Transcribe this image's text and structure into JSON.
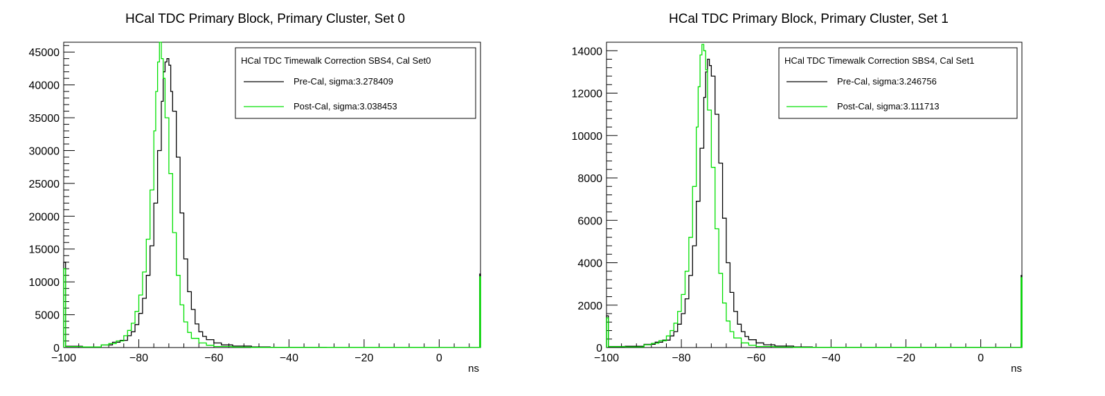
{
  "chart_data": [
    {
      "type": "line",
      "title": "HCal TDC Primary Block, Primary Cluster, Set 0",
      "xlabel": "ns",
      "ylabel": "",
      "xlim": [
        -100,
        11
      ],
      "ylim": [
        0,
        46500
      ],
      "x_ticks": [
        "−100",
        "−80",
        "−60",
        "−40",
        "−20",
        "0"
      ],
      "x_tick_values": [
        -100,
        -80,
        -60,
        -40,
        -20,
        0
      ],
      "y_ticks": [
        "0",
        "5000",
        "10000",
        "15000",
        "20000",
        "25000",
        "30000",
        "35000",
        "40000",
        "45000"
      ],
      "y_tick_values": [
        0,
        5000,
        10000,
        15000,
        20000,
        25000,
        30000,
        35000,
        40000,
        45000
      ],
      "grid": false,
      "legend": {
        "placement": "top-right",
        "title": "HCal TDC Timewalk Correction SBS4, Cal Set0",
        "entries": [
          "Pre-Cal, sigma:3.278409",
          "Post-Cal, sigma:3.038453"
        ]
      },
      "series": [
        {
          "name": "Pre-Cal, sigma:3.278409",
          "color": "#000000",
          "points": [
            [
              -100,
              13000
            ],
            [
              -99.5,
              200
            ],
            [
              -95,
              100
            ],
            [
              -90,
              400
            ],
            [
              -87,
              800
            ],
            [
              -85,
              1100
            ],
            [
              -83,
              1800
            ],
            [
              -82,
              2400
            ],
            [
              -81,
              3500
            ],
            [
              -80,
              5200
            ],
            [
              -79,
              7500
            ],
            [
              -78,
              11000
            ],
            [
              -77,
              15500
            ],
            [
              -76,
              22000
            ],
            [
              -75,
              30000
            ],
            [
              -74,
              37500
            ],
            [
              -73.5,
              42000
            ],
            [
              -73,
              43500
            ],
            [
              -72.5,
              44000
            ],
            [
              -72,
              43000
            ],
            [
              -71.5,
              39000
            ],
            [
              -71,
              36000
            ],
            [
              -70,
              29000
            ],
            [
              -69,
              20500
            ],
            [
              -68,
              13500
            ],
            [
              -67,
              8500
            ],
            [
              -66,
              5800
            ],
            [
              -65,
              3600
            ],
            [
              -64,
              2400
            ],
            [
              -63,
              1700
            ],
            [
              -62,
              1200
            ],
            [
              -60,
              700
            ],
            [
              -58,
              400
            ],
            [
              -55,
              220
            ],
            [
              -50,
              100
            ],
            [
              -45,
              40
            ],
            [
              -30,
              15
            ],
            [
              0,
              10
            ],
            [
              10.5,
              10
            ],
            [
              10.8,
              11200
            ]
          ]
        },
        {
          "name": "Post-Cal, sigma:3.038453",
          "color": "#00e000",
          "points": [
            [
              -100,
              12000
            ],
            [
              -99.5,
              150
            ],
            [
              -95,
              80
            ],
            [
              -90,
              400
            ],
            [
              -88,
              600
            ],
            [
              -86,
              1000
            ],
            [
              -84,
              1800
            ],
            [
              -83,
              2600
            ],
            [
              -82,
              3700
            ],
            [
              -81,
              5500
            ],
            [
              -80,
              8000
            ],
            [
              -79,
              11500
            ],
            [
              -78,
              16500
            ],
            [
              -77,
              24000
            ],
            [
              -76,
              33000
            ],
            [
              -75.5,
              39000
            ],
            [
              -75,
              43500
            ],
            [
              -74.5,
              46500
            ],
            [
              -74,
              44000
            ],
            [
              -73.5,
              41000
            ],
            [
              -73,
              35000
            ],
            [
              -72,
              26500
            ],
            [
              -71,
              17500
            ],
            [
              -70,
              11000
            ],
            [
              -69,
              6500
            ],
            [
              -68,
              3900
            ],
            [
              -67,
              2300
            ],
            [
              -66,
              1400
            ],
            [
              -64,
              700
            ],
            [
              -62,
              350
            ],
            [
              -60,
              160
            ],
            [
              -55,
              60
            ],
            [
              -50,
              25
            ],
            [
              0,
              10
            ],
            [
              10.5,
              10
            ],
            [
              10.8,
              10800
            ]
          ]
        }
      ]
    },
    {
      "type": "line",
      "title": "HCal TDC Primary Block, Primary Cluster, Set 1",
      "xlabel": "ns",
      "ylabel": "",
      "xlim": [
        -100,
        11
      ],
      "ylim": [
        0,
        14400
      ],
      "x_ticks": [
        "−100",
        "−80",
        "−60",
        "−40",
        "−20",
        "0"
      ],
      "x_tick_values": [
        -100,
        -80,
        -60,
        -40,
        -20,
        0
      ],
      "y_ticks": [
        "0",
        "2000",
        "4000",
        "6000",
        "8000",
        "10000",
        "12000",
        "14000"
      ],
      "y_tick_values": [
        0,
        2000,
        4000,
        6000,
        8000,
        10000,
        12000,
        14000
      ],
      "grid": false,
      "legend": {
        "placement": "top-right",
        "title": "HCal TDC Timewalk Correction SBS4, Cal Set1",
        "entries": [
          "Pre-Cal, sigma:3.246756",
          "Post-Cal, sigma:3.111713"
        ]
      },
      "series": [
        {
          "name": "Pre-Cal, sigma:3.246756",
          "color": "#000000",
          "points": [
            [
              -100,
              1500
            ],
            [
              -99.5,
              50
            ],
            [
              -95,
              60
            ],
            [
              -90,
              150
            ],
            [
              -87,
              250
            ],
            [
              -85,
              350
            ],
            [
              -83,
              550
            ],
            [
              -82,
              750
            ],
            [
              -81,
              1100
            ],
            [
              -80,
              1600
            ],
            [
              -79,
              2300
            ],
            [
              -78,
              3400
            ],
            [
              -77,
              4800
            ],
            [
              -76,
              6900
            ],
            [
              -75,
              9400
            ],
            [
              -74,
              11800
            ],
            [
              -73.5,
              13000
            ],
            [
              -73,
              13600
            ],
            [
              -72.5,
              13300
            ],
            [
              -72,
              12800
            ],
            [
              -71,
              11000
            ],
            [
              -70,
              8700
            ],
            [
              -69,
              6100
            ],
            [
              -68,
              4000
            ],
            [
              -67,
              2600
            ],
            [
              -66,
              1700
            ],
            [
              -65,
              1100
            ],
            [
              -64,
              750
            ],
            [
              -63,
              520
            ],
            [
              -62,
              370
            ],
            [
              -60,
              220
            ],
            [
              -58,
              130
            ],
            [
              -55,
              70
            ],
            [
              -50,
              30
            ],
            [
              -45,
              12
            ],
            [
              0,
              5
            ],
            [
              10.5,
              5
            ],
            [
              10.8,
              3400
            ]
          ]
        },
        {
          "name": "Post-Cal, sigma:3.111713",
          "color": "#00e000",
          "points": [
            [
              -100,
              1400
            ],
            [
              -99.5,
              40
            ],
            [
              -95,
              30
            ],
            [
              -90,
              130
            ],
            [
              -88,
              200
            ],
            [
              -86,
              320
            ],
            [
              -84,
              550
            ],
            [
              -83,
              800
            ],
            [
              -82,
              1150
            ],
            [
              -81,
              1700
            ],
            [
              -80,
              2500
            ],
            [
              -79,
              3600
            ],
            [
              -78,
              5200
            ],
            [
              -77,
              7600
            ],
            [
              -76,
              10400
            ],
            [
              -75.5,
              12300
            ],
            [
              -75,
              13800
            ],
            [
              -74.5,
              14300
            ],
            [
              -74,
              14000
            ],
            [
              -73.5,
              13100
            ],
            [
              -73,
              11200
            ],
            [
              -72,
              8500
            ],
            [
              -71,
              5600
            ],
            [
              -70,
              3500
            ],
            [
              -69,
              2100
            ],
            [
              -68,
              1250
            ],
            [
              -67,
              750
            ],
            [
              -66,
              450
            ],
            [
              -64,
              220
            ],
            [
              -62,
              110
            ],
            [
              -60,
              50
            ],
            [
              -55,
              20
            ],
            [
              -50,
              8
            ],
            [
              0,
              4
            ],
            [
              10.5,
              4
            ],
            [
              10.8,
              3300
            ]
          ]
        }
      ]
    }
  ]
}
